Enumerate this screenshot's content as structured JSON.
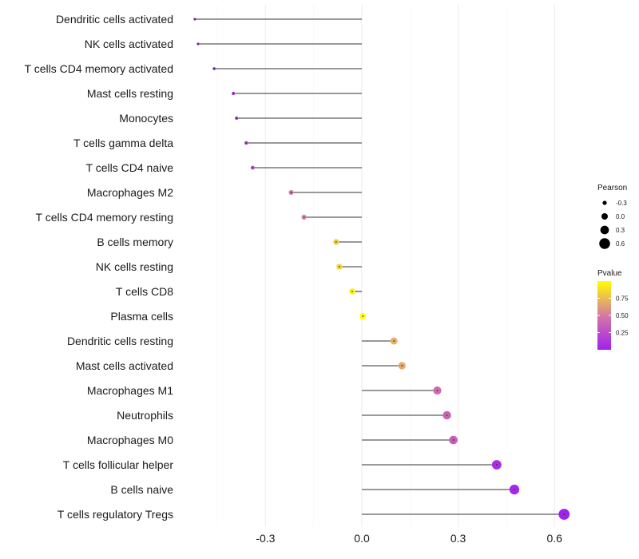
{
  "chart_data": {
    "type": "lollipop",
    "title": "",
    "xlabel": "",
    "ylabel": "",
    "xlim": [
      -0.52,
      0.67
    ],
    "x_ticks": [
      -0.3,
      0.0,
      0.3,
      0.6
    ],
    "x_tick_labels": [
      "-0.3",
      "0.0",
      "0.3",
      "0.6"
    ],
    "grid": true,
    "legend_position": "right",
    "categories": [
      "Dendritic cells activated",
      "NK cells activated",
      "T cells CD4 memory activated",
      "Mast cells resting",
      "Monocytes",
      "T cells gamma delta",
      "T cells CD4 naive",
      "Macrophages M2",
      "T cells CD4 memory resting",
      "B cells memory",
      "NK cells resting",
      "T cells CD8",
      "Plasma cells",
      "Dendritic cells resting",
      "Mast cells activated",
      "Macrophages M1",
      "Neutrophils",
      "Macrophages M0",
      "T cells follicular helper",
      "B cells naive",
      "T cells regulatory  Tregs"
    ],
    "pearson": [
      -0.52,
      -0.51,
      -0.46,
      -0.4,
      -0.39,
      -0.36,
      -0.34,
      -0.22,
      -0.18,
      -0.08,
      -0.07,
      -0.03,
      0.003,
      0.1,
      0.125,
      0.235,
      0.265,
      0.285,
      0.42,
      0.475,
      0.63
    ],
    "pvalue": [
      0.02,
      0.03,
      0.06,
      0.15,
      0.18,
      0.22,
      0.25,
      0.45,
      0.55,
      0.82,
      0.85,
      0.96,
      1.0,
      0.7,
      0.68,
      0.42,
      0.38,
      0.35,
      0.08,
      0.05,
      0.01
    ],
    "size_legend": {
      "title": "Pearson",
      "values": [
        -0.3,
        0.0,
        0.3,
        0.6
      ],
      "labels": [
        "-0.3",
        "0.0",
        "0.3",
        "0.6"
      ]
    },
    "color_legend": {
      "title": "Pvalue",
      "ticks": [
        0.25,
        0.5,
        0.75
      ],
      "tick_labels": [
        "0.25",
        "0.50",
        "0.75"
      ],
      "range": [
        0.0,
        1.0
      ],
      "low_color": "#a020f0",
      "mid_color": "#d579a3",
      "high_color": "#ffff00"
    }
  }
}
